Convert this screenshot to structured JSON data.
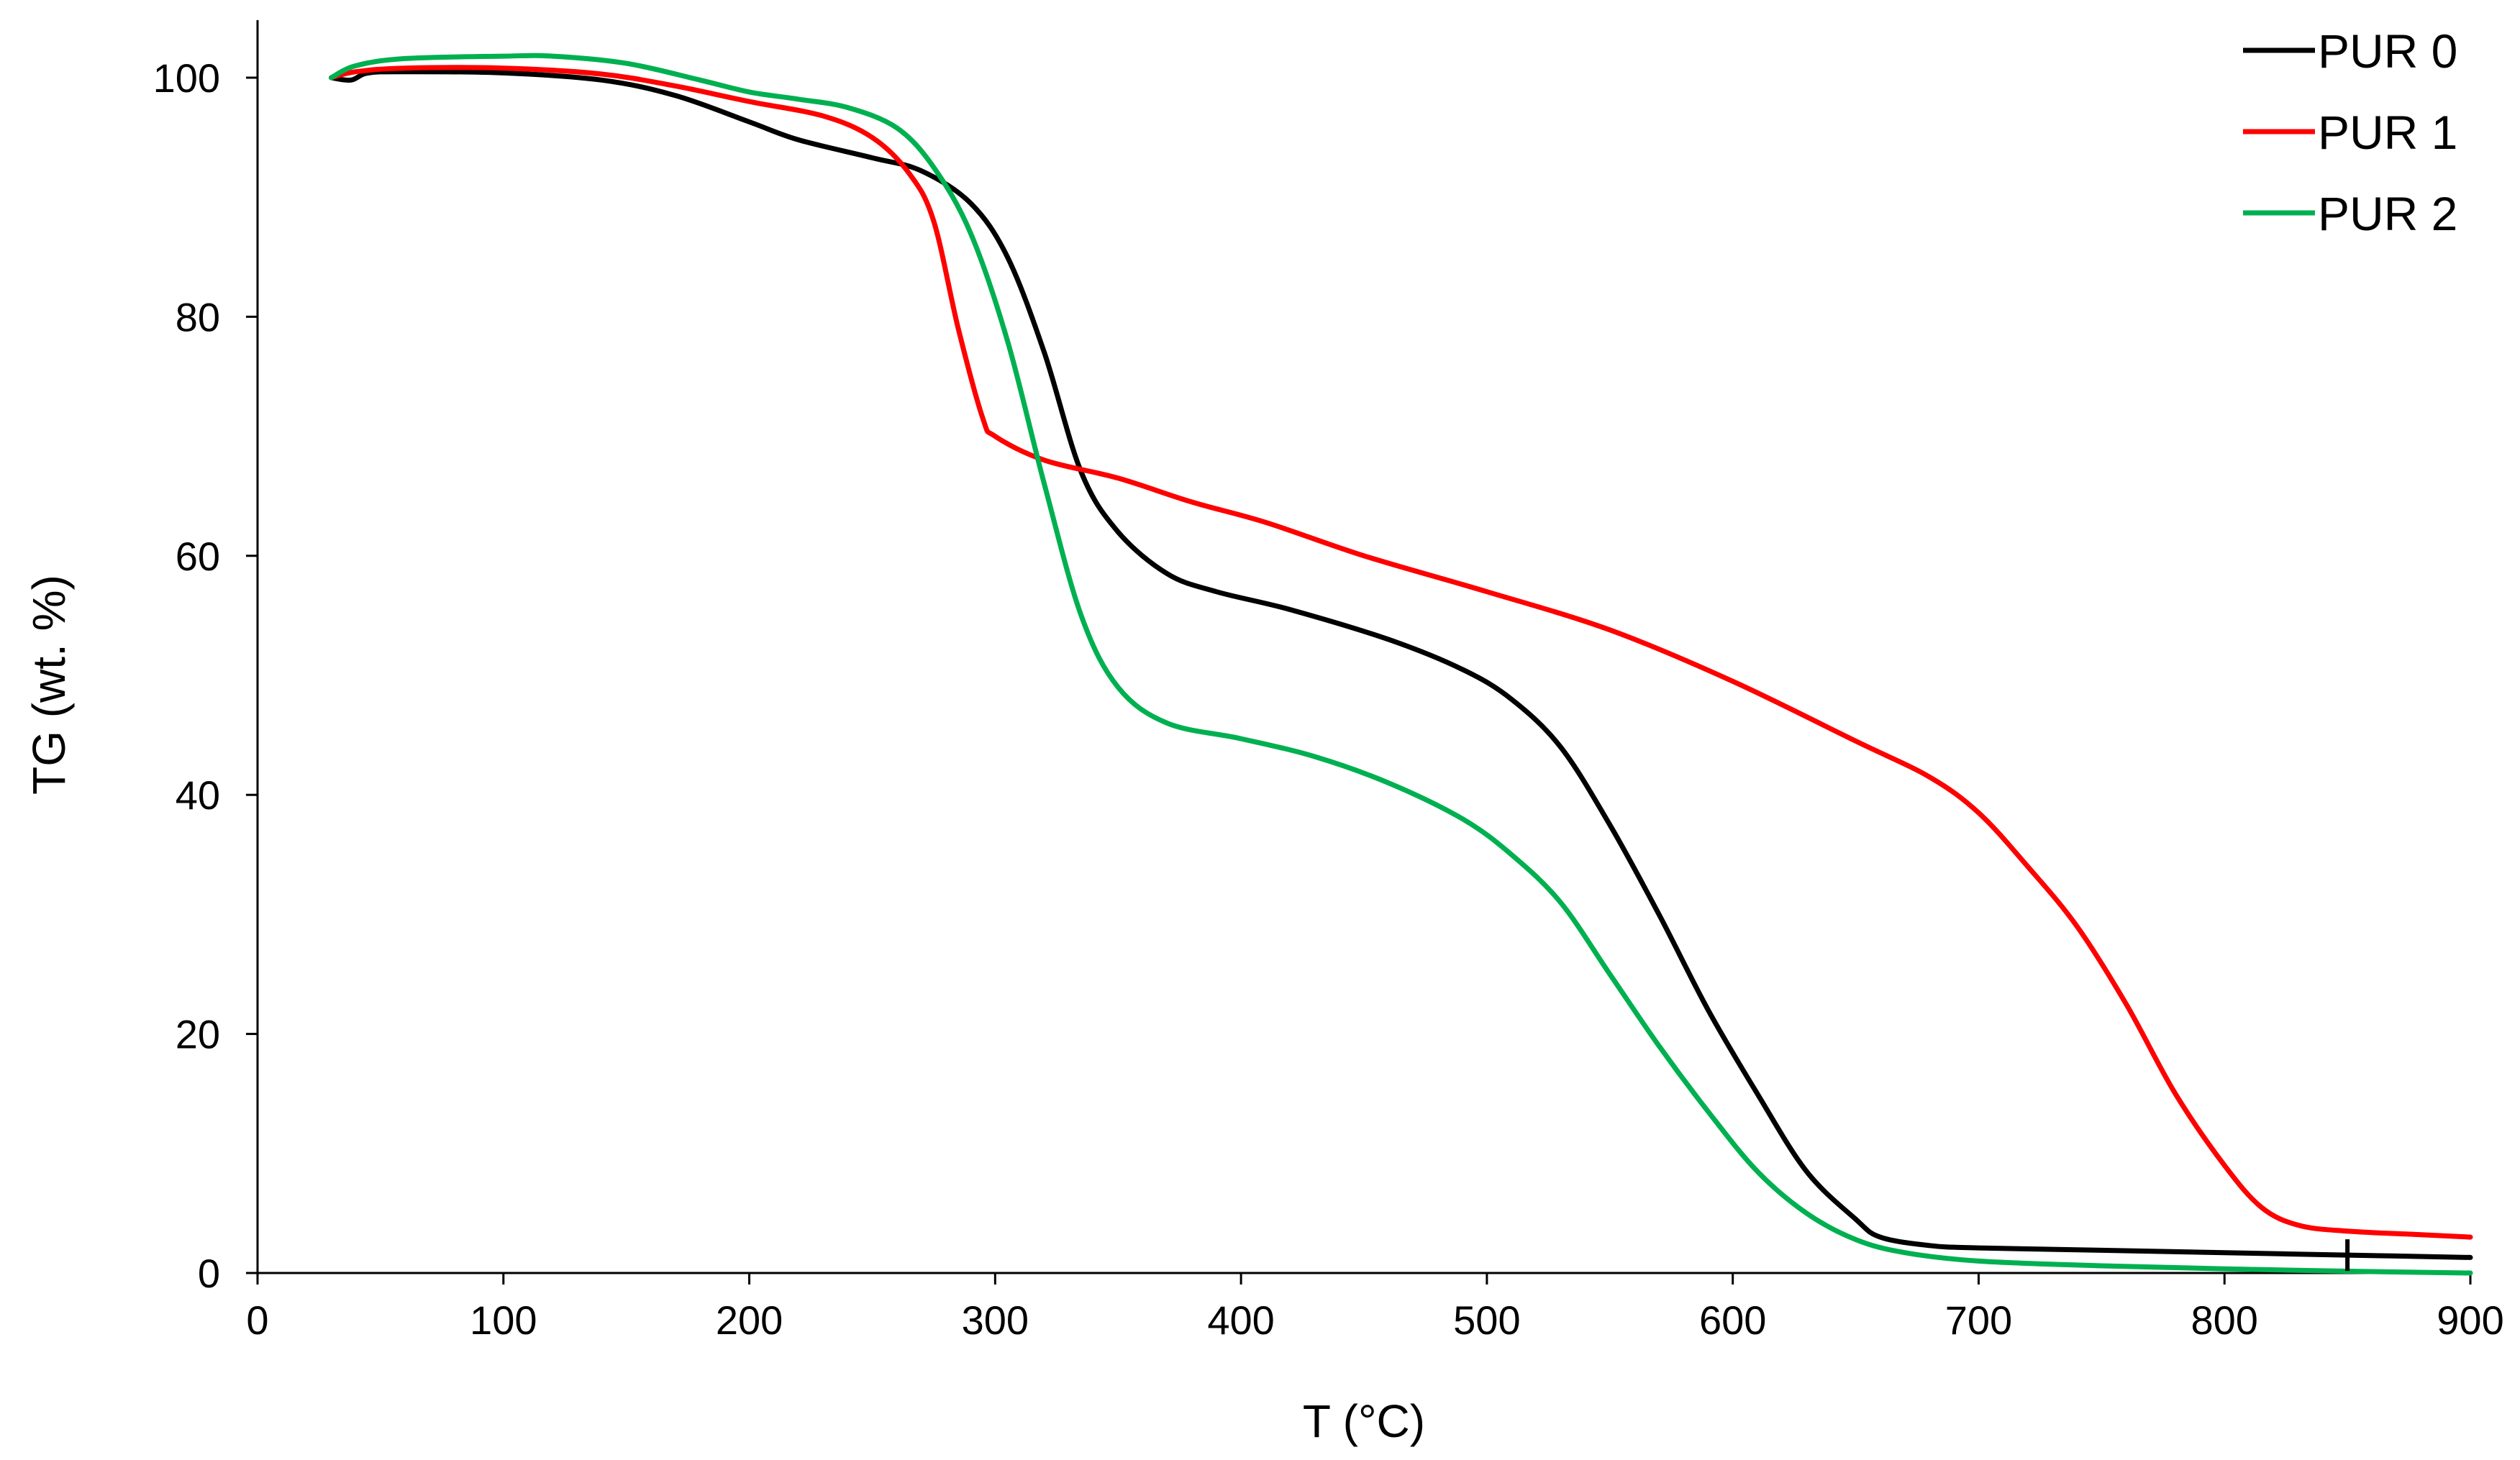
{
  "chart_data": {
    "type": "line",
    "xlabel": "T (°C)",
    "ylabel": "TG (wt. %)",
    "xlim": [
      0,
      900
    ],
    "ylim": [
      0,
      100
    ],
    "xticks": [
      "0",
      "100",
      "200",
      "300",
      "400",
      "500",
      "600",
      "700",
      "800",
      "900"
    ],
    "yticks": [
      "0",
      "20",
      "40",
      "60",
      "80",
      "100"
    ],
    "grid": false,
    "legend_position": "top-right",
    "series": [
      {
        "name": "PUR 0",
        "color": "#000000",
        "points": [
          [
            30,
            100
          ],
          [
            38,
            99.8
          ],
          [
            45,
            100.4
          ],
          [
            60,
            100.5
          ],
          [
            100,
            100.4
          ],
          [
            140,
            99.8
          ],
          [
            170,
            98.5
          ],
          [
            200,
            96.3
          ],
          [
            220,
            94.8
          ],
          [
            250,
            93.3
          ],
          [
            270,
            92.2
          ],
          [
            290,
            89.5
          ],
          [
            305,
            85
          ],
          [
            320,
            77
          ],
          [
            335,
            67
          ],
          [
            350,
            62
          ],
          [
            370,
            58.5
          ],
          [
            390,
            57
          ],
          [
            420,
            55.5
          ],
          [
            460,
            53
          ],
          [
            490,
            50.5
          ],
          [
            510,
            48
          ],
          [
            530,
            44
          ],
          [
            550,
            37.5
          ],
          [
            570,
            30
          ],
          [
            590,
            22
          ],
          [
            610,
            15
          ],
          [
            630,
            8.5
          ],
          [
            650,
            4.5
          ],
          [
            660,
            3
          ],
          [
            680,
            2.3
          ],
          [
            700,
            2.1
          ],
          [
            750,
            1.9
          ],
          [
            800,
            1.7
          ],
          [
            850,
            1.5
          ],
          [
            900,
            1.3
          ]
        ]
      },
      {
        "name": "PUR 1",
        "color": "#ff0000",
        "points": [
          [
            30,
            100
          ],
          [
            40,
            100.5
          ],
          [
            60,
            100.8
          ],
          [
            100,
            100.8
          ],
          [
            140,
            100.3
          ],
          [
            170,
            99.3
          ],
          [
            200,
            98
          ],
          [
            230,
            96.8
          ],
          [
            250,
            95
          ],
          [
            265,
            92
          ],
          [
            275,
            88
          ],
          [
            285,
            79
          ],
          [
            295,
            71.5
          ],
          [
            300,
            70
          ],
          [
            320,
            68
          ],
          [
            350,
            66.5
          ],
          [
            380,
            64.5
          ],
          [
            410,
            62.8
          ],
          [
            450,
            60
          ],
          [
            500,
            57
          ],
          [
            550,
            53.8
          ],
          [
            600,
            49.5
          ],
          [
            650,
            44.5
          ],
          [
            680,
            41.5
          ],
          [
            700,
            38.5
          ],
          [
            720,
            34
          ],
          [
            740,
            29
          ],
          [
            760,
            22.5
          ],
          [
            780,
            15
          ],
          [
            800,
            9
          ],
          [
            815,
            5.5
          ],
          [
            830,
            4
          ],
          [
            850,
            3.5
          ],
          [
            880,
            3.2
          ],
          [
            900,
            3
          ]
        ]
      },
      {
        "name": "PUR 2",
        "color": "#00b050",
        "points": [
          [
            30,
            100
          ],
          [
            40,
            101
          ],
          [
            60,
            101.6
          ],
          [
            100,
            101.8
          ],
          [
            120,
            101.8
          ],
          [
            150,
            101.2
          ],
          [
            180,
            99.8
          ],
          [
            200,
            98.8
          ],
          [
            220,
            98.2
          ],
          [
            240,
            97.5
          ],
          [
            260,
            95.8
          ],
          [
            275,
            92.5
          ],
          [
            290,
            87
          ],
          [
            305,
            78
          ],
          [
            320,
            66
          ],
          [
            335,
            55
          ],
          [
            350,
            49
          ],
          [
            370,
            46
          ],
          [
            400,
            44.7
          ],
          [
            430,
            43.2
          ],
          [
            460,
            41
          ],
          [
            490,
            38
          ],
          [
            510,
            35
          ],
          [
            530,
            31
          ],
          [
            550,
            25
          ],
          [
            570,
            19
          ],
          [
            590,
            13.5
          ],
          [
            610,
            8.5
          ],
          [
            630,
            5
          ],
          [
            650,
            2.8
          ],
          [
            670,
            1.7
          ],
          [
            700,
            1
          ],
          [
            750,
            0.6
          ],
          [
            800,
            0.35
          ],
          [
            850,
            0.15
          ],
          [
            900,
            0
          ]
        ]
      }
    ]
  }
}
